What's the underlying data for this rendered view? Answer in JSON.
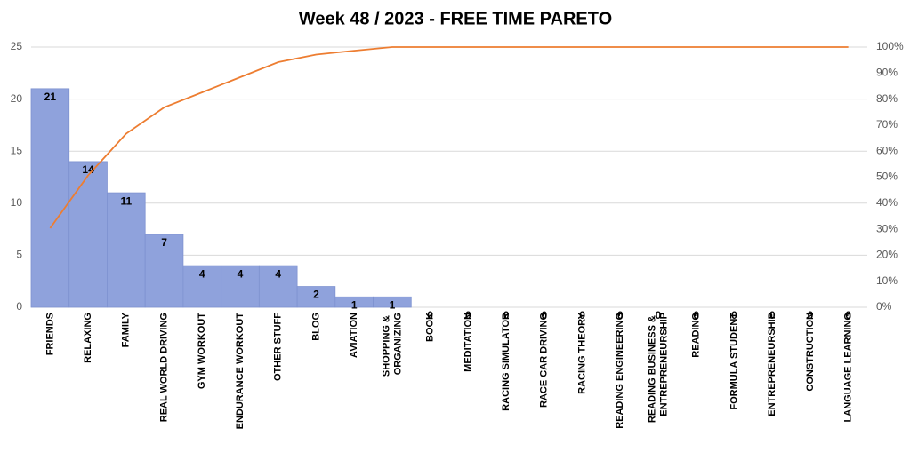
{
  "chart_data": {
    "type": "pareto",
    "title": "Week 48 / 2023 - FREE TIME PARETO",
    "categories": [
      "FRIENDS",
      "RELAXING",
      "FAMILY",
      "REAL WORLD DRIVING",
      "GYM WORKOUT",
      "ENDURANCE WORKOUT",
      "OTHER STUFF",
      "BLOG",
      "AVIATION",
      "SHOPPING & ORGANIZING",
      "BOOK",
      "MEDITATION",
      "RACING SIMULATOR",
      "RACE CAR DRIVING",
      "RACING THEORY",
      "READING ENGINEERING",
      "READING BUSINESS & ENTREPRENEURSHIP",
      "READING",
      "FORMULA STUDENT",
      "ENTREPRENEURSHIP",
      "CONSTRUCTION",
      "LANGUAGE LEARNING"
    ],
    "series": [
      {
        "type": "bar",
        "color": "#8fa2dc",
        "values": [
          21,
          14,
          11,
          7,
          4,
          4,
          4,
          2,
          1,
          1,
          0,
          0,
          0,
          0,
          0,
          0,
          0,
          0,
          0,
          0,
          0,
          0
        ]
      },
      {
        "type": "line",
        "axis": "y2",
        "color": "#ed7d31",
        "values": [
          30.4,
          50.7,
          66.7,
          76.8,
          82.6,
          88.4,
          94.2,
          97.1,
          98.6,
          100,
          100,
          100,
          100,
          100,
          100,
          100,
          100,
          100,
          100,
          100,
          100,
          100
        ]
      }
    ],
    "ylim": [
      0,
      25
    ],
    "yticks": [
      0,
      5,
      10,
      15,
      20,
      25
    ],
    "y2lim": [
      0,
      100
    ],
    "y2ticks": [
      {
        "value": 0,
        "label": "0%"
      },
      {
        "value": 10,
        "label": "10%"
      },
      {
        "value": 20,
        "label": "20%"
      },
      {
        "value": 30,
        "label": "30%"
      },
      {
        "value": 40,
        "label": "40%"
      },
      {
        "value": 50,
        "label": "50%"
      },
      {
        "value": 60,
        "label": "60%"
      },
      {
        "value": 70,
        "label": "70%"
      },
      {
        "value": 80,
        "label": "80%"
      },
      {
        "value": 90,
        "label": "90%"
      },
      {
        "value": 100,
        "label": "100%"
      }
    ],
    "grid": true
  }
}
